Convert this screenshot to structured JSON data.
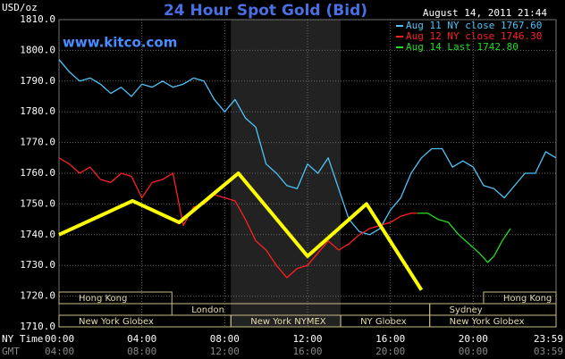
{
  "chart_data": {
    "type": "line",
    "title": "24 Hour Spot Gold (Bid)",
    "y_unit": "USD/oz",
    "timestamp": "August 14, 2011 21:44",
    "site": "www.kitco.com",
    "x_row_labels": [
      "NY Time",
      "GMT"
    ],
    "xlim": [
      0,
      24
    ],
    "xticks": [
      {
        "value": 0,
        "label": "00:00"
      },
      {
        "value": 4,
        "label": "04:00"
      },
      {
        "value": 8,
        "label": "08:00"
      },
      {
        "value": 12,
        "label": "12:00"
      },
      {
        "value": 16,
        "label": "16:00"
      },
      {
        "value": 20,
        "label": "20:00"
      },
      {
        "value": 23.98,
        "label": "23:59"
      }
    ],
    "gmt_labels": [
      "04:00",
      "08:00",
      "12:00",
      "16:00",
      "20:00",
      "00:00",
      "03:59"
    ],
    "ylim": [
      1710,
      1810
    ],
    "yticks": [
      {
        "value": 1710,
        "label": "1710.0"
      },
      {
        "value": 1720,
        "label": "1720.0"
      },
      {
        "value": 1730,
        "label": "1730.0"
      },
      {
        "value": 1740,
        "label": "1740.0"
      },
      {
        "value": 1750,
        "label": "1750.0"
      },
      {
        "value": 1760,
        "label": "1760.0"
      },
      {
        "value": 1770,
        "label": "1770.0"
      },
      {
        "value": 1780,
        "label": "1780.0"
      },
      {
        "value": 1790,
        "label": "1790.0"
      },
      {
        "value": 1800,
        "label": "1800.0"
      },
      {
        "value": 1810,
        "label": "1810.0"
      }
    ],
    "grid": true,
    "series": [
      {
        "name": "Aug 11 NY close 1767.60",
        "color": "#4fc3f7",
        "x": [
          0,
          0.5,
          1,
          1.5,
          2,
          2.5,
          3,
          3.5,
          4,
          4.5,
          5,
          5.5,
          6,
          6.5,
          7,
          7.5,
          8,
          8.5,
          9,
          9.5,
          10,
          10.5,
          11,
          11.5,
          12,
          12.5,
          13,
          13.5,
          14,
          14.5,
          15,
          15.5,
          16,
          16.5,
          17,
          17.5,
          18,
          18.5,
          19,
          19.5,
          20,
          20.5,
          21,
          21.5,
          22,
          22.5,
          23,
          23.5,
          24
        ],
        "values": [
          1797,
          1793,
          1790,
          1791,
          1789,
          1786,
          1788,
          1785,
          1789,
          1788,
          1790,
          1788,
          1789,
          1791,
          1790,
          1784,
          1780,
          1784,
          1778,
          1775,
          1763,
          1760,
          1756,
          1755,
          1763,
          1760,
          1765,
          1755,
          1745,
          1741,
          1740,
          1742,
          1748,
          1752,
          1760,
          1765,
          1768,
          1768,
          1762,
          1764,
          1762,
          1756,
          1755,
          1752,
          1756,
          1760,
          1760,
          1767,
          1765
        ]
      },
      {
        "name": "Aug 12 NY close 1746.30",
        "color": "#ff2020",
        "x": [
          0,
          0.5,
          1,
          1.5,
          2,
          2.5,
          3,
          3.5,
          4,
          4.5,
          5,
          5.5,
          6,
          6.5,
          7,
          7.5,
          8,
          8.5,
          9,
          9.5,
          10,
          10.5,
          11,
          11.5,
          12,
          12.5,
          13,
          13.5,
          14,
          14.5,
          15,
          15.5,
          16,
          16.5,
          17,
          17.3
        ],
        "values": [
          1765,
          1763,
          1760,
          1762,
          1758,
          1757,
          1760,
          1759,
          1752,
          1757,
          1758,
          1760,
          1743,
          1749,
          1750,
          1753,
          1752,
          1751,
          1745,
          1738,
          1735,
          1730,
          1726,
          1729,
          1730,
          1734,
          1738,
          1735,
          1737,
          1740,
          1742,
          1743,
          1744,
          1746,
          1747,
          1747
        ]
      },
      {
        "name": "Aug 14 Last 1742.80",
        "color": "#22dd22",
        "x": [
          17.3,
          17.8,
          18.3,
          18.8,
          19.3,
          19.8,
          20.3,
          20.7,
          21.0,
          21.4,
          21.8
        ],
        "values": [
          1747,
          1747,
          1745,
          1744,
          1740,
          1737,
          1734,
          1731,
          1733,
          1738,
          1742
        ]
      }
    ],
    "trend_line": {
      "color": "#ffff00",
      "x": [
        0,
        3.55,
        5.8,
        8.66,
        12,
        14.85,
        17.5
      ],
      "values": [
        1740,
        1751,
        1744,
        1760,
        1733,
        1750,
        1722
      ]
    },
    "sessions": [
      {
        "name": "Hong Kong",
        "start": 0,
        "end": 5.45,
        "row": 0
      },
      {
        "name": "Hong Kong",
        "start": 20.5,
        "end": 24,
        "row": 0
      },
      {
        "name": "London",
        "start": 5.45,
        "end": 17.9,
        "row": 1
      },
      {
        "name": "Sydney",
        "start": 17.9,
        "end": 24,
        "row": 1
      },
      {
        "name": "New York Globex",
        "start": 0,
        "end": 8.3,
        "row": 2
      },
      {
        "name": "New York NYMEX",
        "start": 8.3,
        "end": 13.6,
        "row": 2,
        "highlight": true
      },
      {
        "name": "NY Globex",
        "start": 13.6,
        "end": 17.9,
        "row": 2
      },
      {
        "name": "New York Globex",
        "start": 17.9,
        "end": 24,
        "row": 2
      }
    ]
  }
}
